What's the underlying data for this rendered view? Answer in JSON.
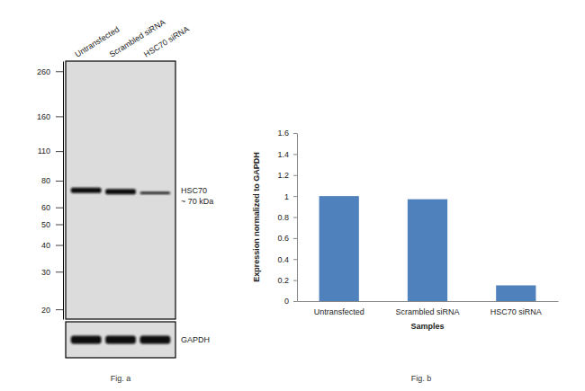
{
  "chart_data": [
    {
      "type": "blot",
      "caption": "Fig. a",
      "categories": [
        "Untransfected",
        "Scrambled siRNA",
        "HSC70 siRNA"
      ],
      "log": "y",
      "ylim": [
        18,
        290
      ],
      "yticks": [
        260,
        160,
        110,
        80,
        60,
        50,
        40,
        30,
        20
      ],
      "series": [
        {
          "name": "HSC70",
          "values": [
            72,
            71,
            70
          ],
          "intensity": [
            1,
            0.97,
            0.15
          ]
        }
      ],
      "annotations": [
        "~ 70 kDa"
      ],
      "loading_control": {
        "name": "GAPDH",
        "intensity": [
          1,
          1,
          1
        ]
      }
    },
    {
      "type": "bar",
      "caption": "Fig. b",
      "categories": [
        "Untransfected",
        "Scrambled siRNA",
        "HSC70 siRNA"
      ],
      "values": [
        1,
        0.97,
        0.15
      ],
      "color": "#4f81bd",
      "xlabel": "Samples",
      "ylabel": "Expression normalized to GAPDH",
      "ylim": [
        0,
        1.6
      ],
      "yticks": [
        0,
        0.2,
        0.4,
        0.6,
        0.8,
        1,
        1.2,
        1.4,
        1.6
      ],
      "grid": false
    }
  ]
}
